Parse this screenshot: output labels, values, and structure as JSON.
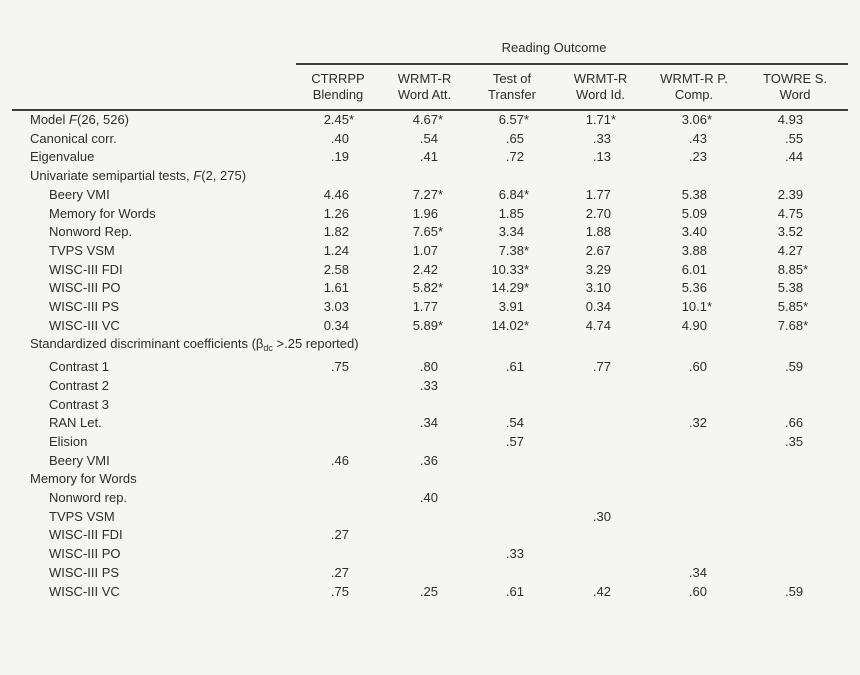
{
  "colors": {
    "background": "#f5f5f3",
    "text": "#2d2d2b",
    "rule": "#3d3d3f"
  },
  "table": {
    "spanner": "Reading Outcome",
    "columns": [
      {
        "line1": "CTRRPP",
        "line2": "Blending"
      },
      {
        "line1": "WRMT-R",
        "line2": "Word Att."
      },
      {
        "line1": "Test of",
        "line2": "Transfer"
      },
      {
        "line1": "WRMT-R",
        "line2": "Word Id."
      },
      {
        "line1": "WRMT-R P.",
        "line2": "Comp."
      },
      {
        "line1": "TOWRE S.",
        "line2": "Word"
      }
    ],
    "rows": [
      {
        "label": "Model F(26, 526)",
        "label_parts": [
          {
            "text": "Model "
          },
          {
            "text": "F",
            "style": "italic"
          },
          {
            "text": "(26, 526)"
          }
        ],
        "indent": 0,
        "values": [
          "2.45*",
          "4.67*",
          "6.57*",
          "1.71*",
          "3.06*",
          "4.93"
        ]
      },
      {
        "label": "Canonical corr.",
        "indent": 0,
        "values": [
          ".40",
          ".54",
          ".65",
          ".33",
          ".43",
          ".55"
        ]
      },
      {
        "label": "Eigenvalue",
        "indent": 0,
        "values": [
          ".19",
          ".41",
          ".72",
          ".13",
          ".23",
          ".44"
        ]
      },
      {
        "label": "Univariate semipartial tests, F(2, 275)",
        "label_parts": [
          {
            "text": "Univariate semipartial tests, "
          },
          {
            "text": "F",
            "style": "italic"
          },
          {
            "text": "(2, 275)"
          }
        ],
        "indent": 0,
        "values": [
          "",
          "",
          "",
          "",
          "",
          ""
        ]
      },
      {
        "label": "Beery VMI",
        "indent": 1,
        "values": [
          "4.46",
          "7.27*",
          "6.84*",
          "1.77",
          "5.38",
          "2.39"
        ]
      },
      {
        "label": "Memory for Words",
        "indent": 1,
        "values": [
          "1.26",
          "1.96",
          "1.85",
          "2.70",
          "5.09",
          "4.75"
        ]
      },
      {
        "label": "Nonword Rep.",
        "indent": 1,
        "values": [
          "1.82",
          "7.65*",
          "3.34",
          "1.88",
          "3.40",
          "3.52"
        ]
      },
      {
        "label": "TVPS VSM",
        "indent": 1,
        "values": [
          "1.24",
          "1.07",
          "7.38*",
          "2.67",
          "3.88",
          "4.27"
        ]
      },
      {
        "label": "WISC-III FDI",
        "indent": 1,
        "values": [
          "2.58",
          "2.42",
          "10.33*",
          "3.29",
          "6.01",
          "8.85*"
        ]
      },
      {
        "label": "WISC-III PO",
        "indent": 1,
        "values": [
          "1.61",
          "5.82*",
          "14.29*",
          "3.10",
          "5.36",
          "5.38"
        ]
      },
      {
        "label": "WISC-III PS",
        "indent": 1,
        "values": [
          "3.03",
          "1.77",
          "3.91",
          "0.34",
          "10.1*",
          "5.85*"
        ]
      },
      {
        "label": "WISC-III VC",
        "indent": 1,
        "values": [
          "0.34",
          "5.89*",
          "14.02*",
          "4.74",
          "4.90",
          "7.68*"
        ]
      },
      {
        "label": "Standardized discriminant coefficients (βdc >.25 reported)",
        "label_parts": [
          {
            "text": "Standardized discriminant coefficients (β"
          },
          {
            "text": "dc",
            "style": "sub"
          },
          {
            "text": " >.25 reported)"
          }
        ],
        "indent": 0,
        "values": [
          "",
          "",
          "",
          "",
          "",
          ""
        ]
      },
      {
        "label": "Contrast 1",
        "indent": 1,
        "values": [
          ".75",
          ".80",
          ".61",
          ".77",
          ".60",
          ".59"
        ]
      },
      {
        "label": "Contrast 2",
        "indent": 1,
        "values": [
          "",
          ".33",
          "",
          "",
          "",
          ""
        ]
      },
      {
        "label": "Contrast 3",
        "indent": 1,
        "values": [
          "",
          "",
          "",
          "",
          "",
          ""
        ]
      },
      {
        "label": "RAN Let.",
        "indent": 1,
        "values": [
          "",
          ".34",
          ".54",
          "",
          ".32",
          ".66"
        ]
      },
      {
        "label": "Elision",
        "indent": 1,
        "values": [
          "",
          "",
          ".57",
          "",
          "",
          ".35"
        ]
      },
      {
        "label": "Beery VMI",
        "indent": 1,
        "values": [
          ".46",
          ".36",
          "",
          "",
          "",
          ""
        ]
      },
      {
        "label": "Memory for Words",
        "indent": 0,
        "values": [
          "",
          "",
          "",
          "",
          "",
          ""
        ]
      },
      {
        "label": "Nonword rep.",
        "indent": 1,
        "values": [
          "",
          ".40",
          "",
          "",
          "",
          ""
        ]
      },
      {
        "label": "TVPS VSM",
        "indent": 1,
        "values": [
          "",
          "",
          "",
          ".30",
          "",
          ""
        ]
      },
      {
        "label": "WISC-III FDI",
        "indent": 1,
        "values": [
          ".27",
          "",
          "",
          "",
          "",
          ""
        ]
      },
      {
        "label": "WISC-III PO",
        "indent": 1,
        "values": [
          "",
          "",
          ".33",
          "",
          "",
          ""
        ]
      },
      {
        "label": "WISC-III PS",
        "indent": 1,
        "values": [
          ".27",
          "",
          "",
          "",
          ".34",
          ""
        ]
      },
      {
        "label": "WISC-III VC",
        "indent": 1,
        "values": [
          ".75",
          ".25",
          ".61",
          ".42",
          ".60",
          ".59"
        ]
      }
    ]
  }
}
